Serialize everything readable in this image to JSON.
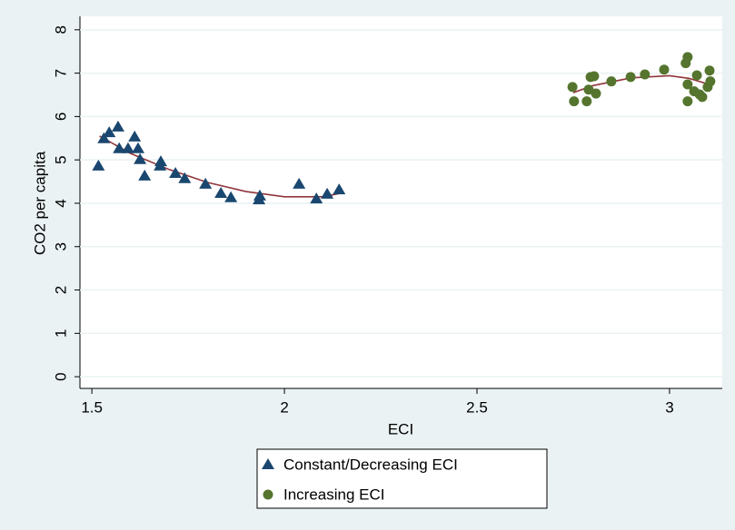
{
  "chart_data": {
    "type": "scatter",
    "x_label": "ECI",
    "y_label": "CO2 per capita",
    "xlim": [
      1.469,
      3.137
    ],
    "ylim": [
      -0.27,
      8.31
    ],
    "xticks": [
      1.5,
      2,
      2.5,
      3
    ],
    "yticks": [
      0,
      1,
      2,
      3,
      4,
      5,
      6,
      7,
      8
    ],
    "grid": true,
    "legend": "bottom",
    "series": [
      {
        "name": "Constant/Decreasing ECI",
        "color": "#1a476f",
        "marker": "triangle",
        "x": [
          1.517,
          1.531,
          1.545,
          1.568,
          1.571,
          1.594,
          1.611,
          1.62,
          1.625,
          1.637,
          1.677,
          1.679,
          1.717,
          1.741,
          1.795,
          1.835,
          1.861,
          1.934,
          1.936,
          2.038,
          2.083,
          2.111,
          2.142
        ],
        "values": [
          4.86,
          5.49,
          5.63,
          5.76,
          5.26,
          5.26,
          5.53,
          5.26,
          5.01,
          4.63,
          4.86,
          4.96,
          4.69,
          4.57,
          4.44,
          4.23,
          4.13,
          4.08,
          4.17,
          4.44,
          4.1,
          4.21,
          4.31
        ]
      },
      {
        "name": "Increasing ECI",
        "color": "#55752f",
        "marker": "circle",
        "x": [
          2.748,
          2.752,
          2.785,
          2.79,
          2.795,
          2.804,
          2.809,
          2.849,
          2.899,
          2.936,
          2.986,
          3.042,
          3.047,
          3.047,
          3.047,
          3.064,
          3.071,
          3.078,
          3.085,
          3.099,
          3.104,
          3.106
        ],
        "values": [
          6.68,
          6.35,
          6.35,
          6.62,
          6.91,
          6.93,
          6.53,
          6.81,
          6.91,
          6.97,
          7.08,
          7.23,
          7.37,
          6.74,
          6.35,
          6.58,
          6.95,
          6.51,
          6.45,
          6.68,
          7.06,
          6.81
        ]
      }
    ],
    "fits": [
      {
        "color": "#90353b",
        "x": [
          1.52,
          1.6,
          1.7,
          1.8,
          1.9,
          2.0,
          2.1,
          2.14
        ],
        "values": [
          5.55,
          5.15,
          4.78,
          4.48,
          4.27,
          4.15,
          4.15,
          4.22
        ]
      },
      {
        "color": "#90353b",
        "x": [
          2.75,
          2.8,
          2.9,
          3.0,
          3.05,
          3.1
        ],
        "values": [
          6.55,
          6.71,
          6.89,
          6.94,
          6.88,
          6.75
        ]
      }
    ]
  }
}
